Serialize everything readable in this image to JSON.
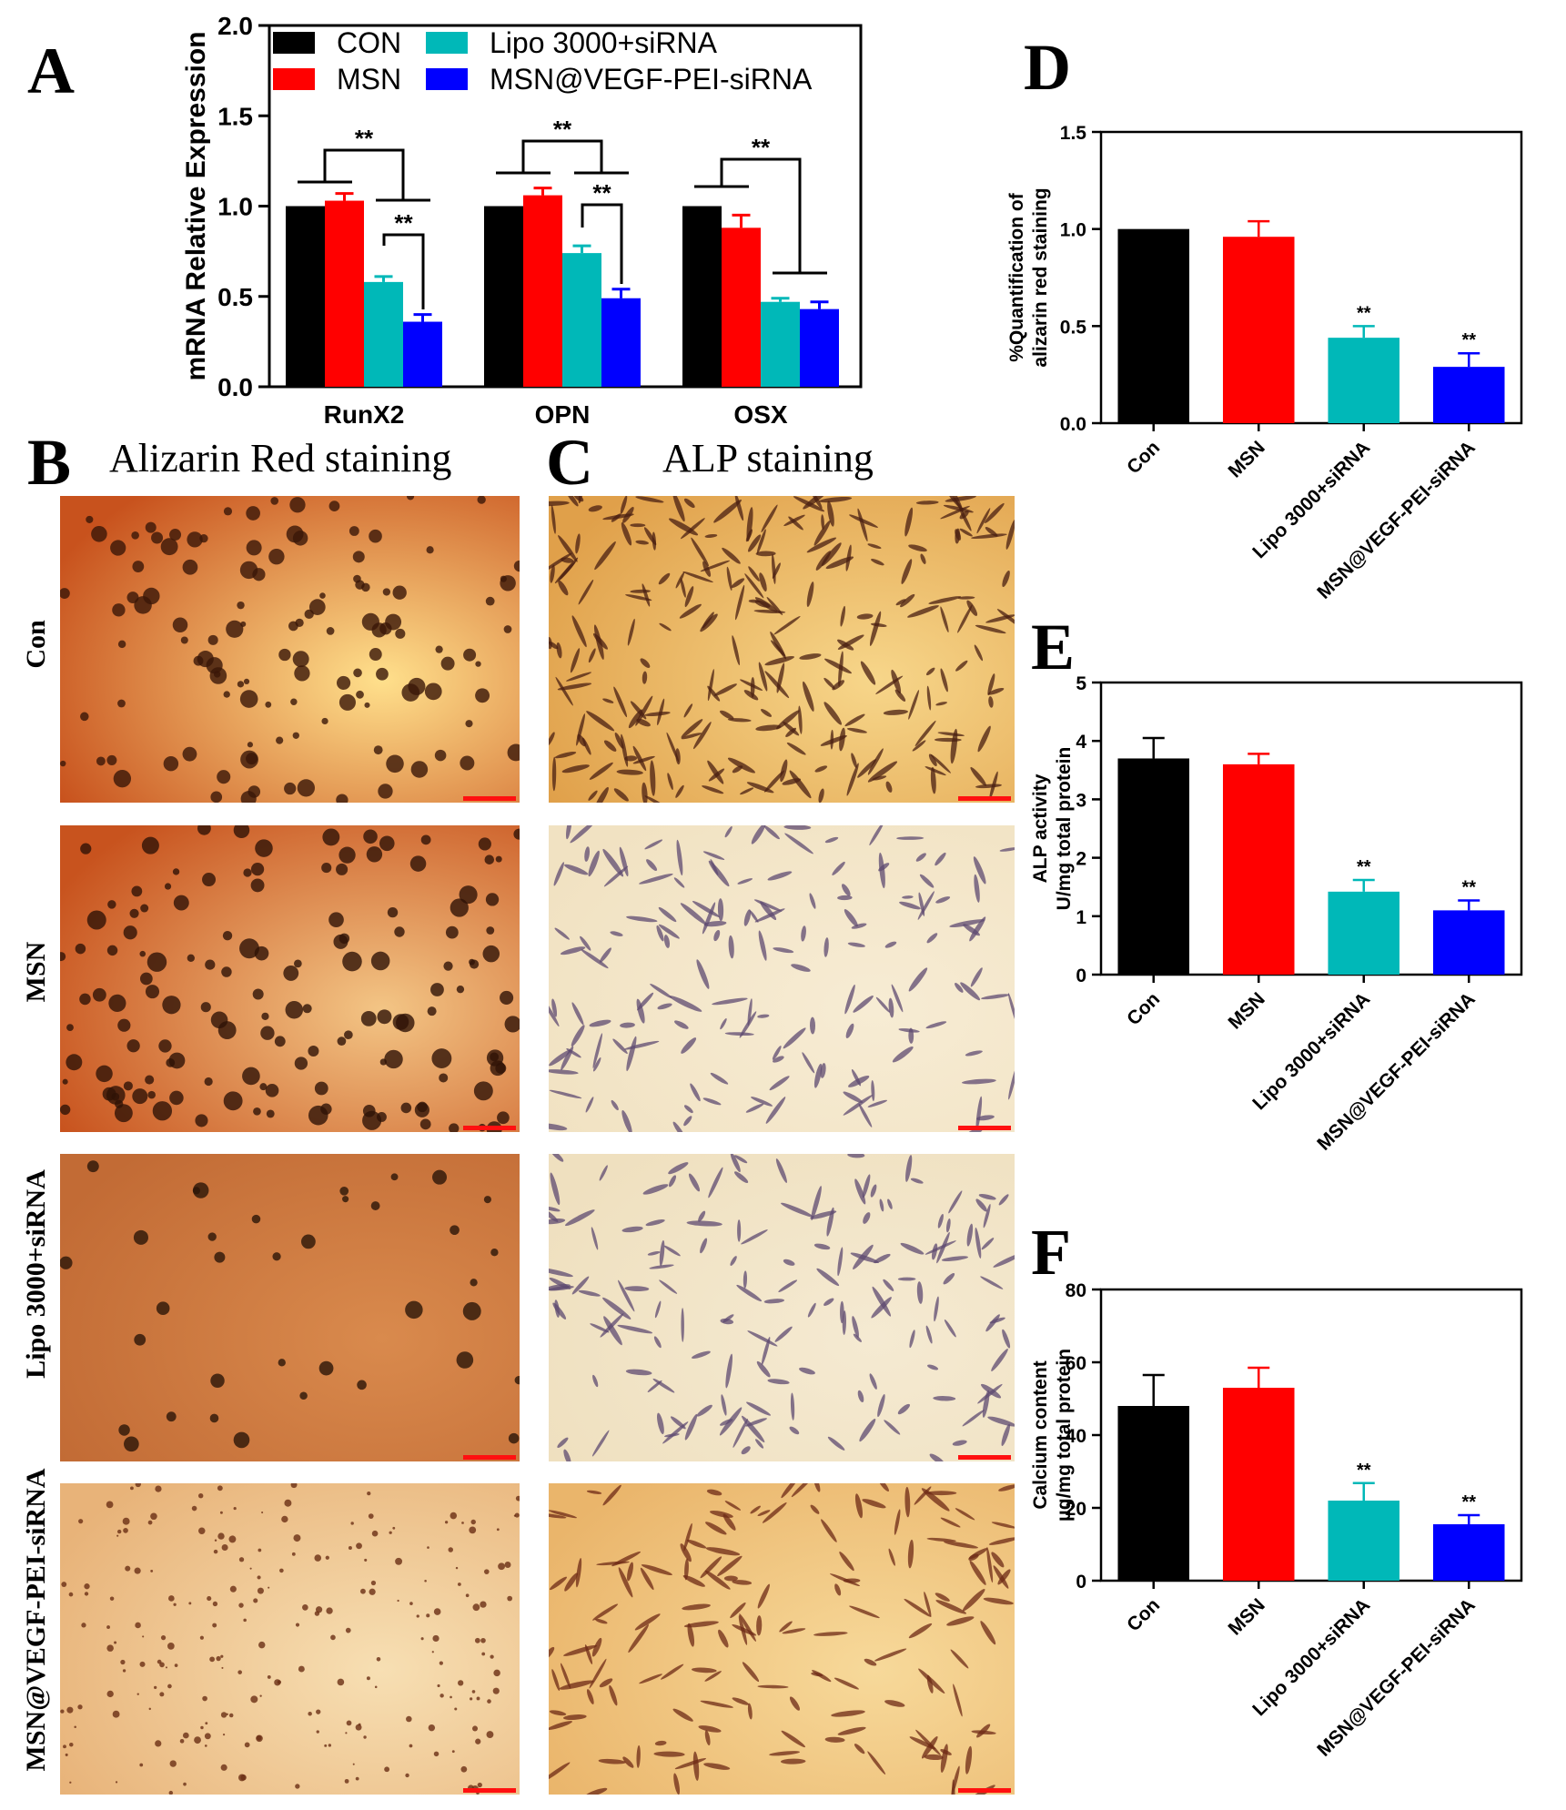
{
  "panel_letters": {
    "a": "A",
    "b": "B",
    "c": "C",
    "d": "D",
    "e": "E",
    "f": "F"
  },
  "panel_titles": {
    "alizarin": "Alizarin Red staining",
    "alp": "ALP staining"
  },
  "row_labels": [
    "Con",
    "MSN",
    "Lipo 3000+siRNA",
    "MSN@VEGF-PEI-siRNA"
  ],
  "colors": {
    "con": "#000000",
    "msn": "#ff0000",
    "lipo": "#00b8b8",
    "vegf": "#0000ff",
    "scalebar": "#ff1010"
  },
  "chart_data": [
    {
      "id": "A",
      "type": "bar",
      "ylabel": "mRNA Relative Expression",
      "xlabel": "",
      "ylim": [
        0,
        2.0
      ],
      "yticks": [
        "0.0",
        "0.5",
        "1.0",
        "1.5",
        "2.0"
      ],
      "categories": [
        "RunX2",
        "OPN",
        "OSX"
      ],
      "series": [
        {
          "name": "CON",
          "color": "#000000",
          "values": [
            1.0,
            1.0,
            1.0
          ],
          "errors": [
            0,
            0,
            0
          ]
        },
        {
          "name": "MSN",
          "color": "#ff0000",
          "values": [
            1.03,
            1.06,
            0.88
          ],
          "errors": [
            0.04,
            0.04,
            0.07
          ]
        },
        {
          "name": "Lipo 3000+siRNA",
          "color": "#00b8b8",
          "values": [
            0.58,
            0.74,
            0.47
          ],
          "errors": [
            0.03,
            0.04,
            0.02
          ]
        },
        {
          "name": "MSN@VEGF-PEI-siRNA",
          "color": "#0000ff",
          "values": [
            0.36,
            0.49,
            0.43
          ],
          "errors": [
            0.04,
            0.05,
            0.04
          ]
        }
      ],
      "significance": "**",
      "legend": "top"
    },
    {
      "id": "D",
      "type": "bar",
      "ylabel": [
        "%Quantification of",
        "alizarin red staining"
      ],
      "ylim": [
        0,
        1.5
      ],
      "yticks": [
        "0.0",
        "0.5",
        "1.0",
        "1.5"
      ],
      "categories": [
        "Con",
        "MSN",
        "Lipo 3000+siRNA",
        "MSN@VEGF-PEI-siRNA"
      ],
      "values": [
        1.0,
        0.96,
        0.44,
        0.29
      ],
      "errors": [
        0,
        0.08,
        0.06,
        0.07
      ],
      "annotations": [
        "",
        "",
        "**",
        "**"
      ]
    },
    {
      "id": "E",
      "type": "bar",
      "ylabel": [
        "ALP activity",
        "U/mg total protein"
      ],
      "ylim": [
        0,
        5
      ],
      "yticks": [
        "0",
        "1",
        "2",
        "3",
        "4",
        "5"
      ],
      "categories": [
        "Con",
        "MSN",
        "Lipo 3000+siRNA",
        "MSN@VEGF-PEI-siRNA"
      ],
      "values": [
        3.7,
        3.6,
        1.42,
        1.1
      ],
      "errors": [
        0.35,
        0.18,
        0.2,
        0.17
      ],
      "annotations": [
        "",
        "",
        "**",
        "**"
      ]
    },
    {
      "id": "F",
      "type": "bar",
      "ylabel": [
        "Calcium content",
        "μg/mg total protein"
      ],
      "ylim": [
        0,
        80
      ],
      "yticks": [
        "0",
        "20",
        "40",
        "60",
        "80"
      ],
      "categories": [
        "Con",
        "MSN",
        "Lipo 3000+siRNA",
        "MSN@VEGF-PEI-siRNA"
      ],
      "values": [
        48,
        53,
        22,
        15.5
      ],
      "errors": [
        8.5,
        5.5,
        4.8,
        2.5
      ],
      "annotations": [
        "",
        "",
        "**",
        "**"
      ]
    }
  ]
}
